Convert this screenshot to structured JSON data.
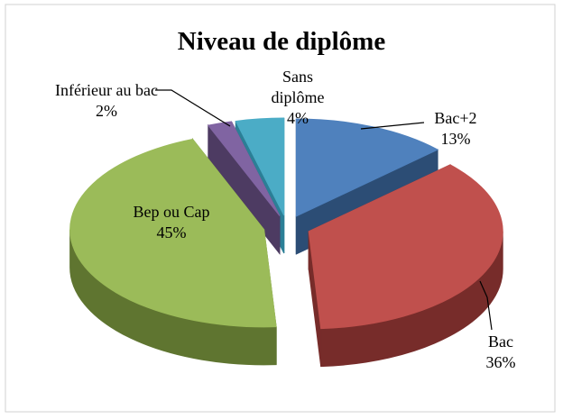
{
  "chart_data": {
    "type": "pie",
    "title": "Niveau de diplôme",
    "categories": [
      "Bac+2",
      "Bac",
      "Bep ou Cap",
      "Inférieur au bac",
      "Sans diplôme"
    ],
    "values": [
      13,
      36,
      45,
      2,
      4
    ],
    "value_labels": [
      "13%",
      "36%",
      "45%",
      "2%",
      "4%"
    ],
    "colors": [
      "#4f81bd",
      "#c0504d",
      "#9bbb59",
      "#8064a2",
      "#4bacc6"
    ],
    "side_colors": [
      "#2c4d75",
      "#772c2a",
      "#5f7530",
      "#4d3b62",
      "#2b7f96"
    ]
  }
}
